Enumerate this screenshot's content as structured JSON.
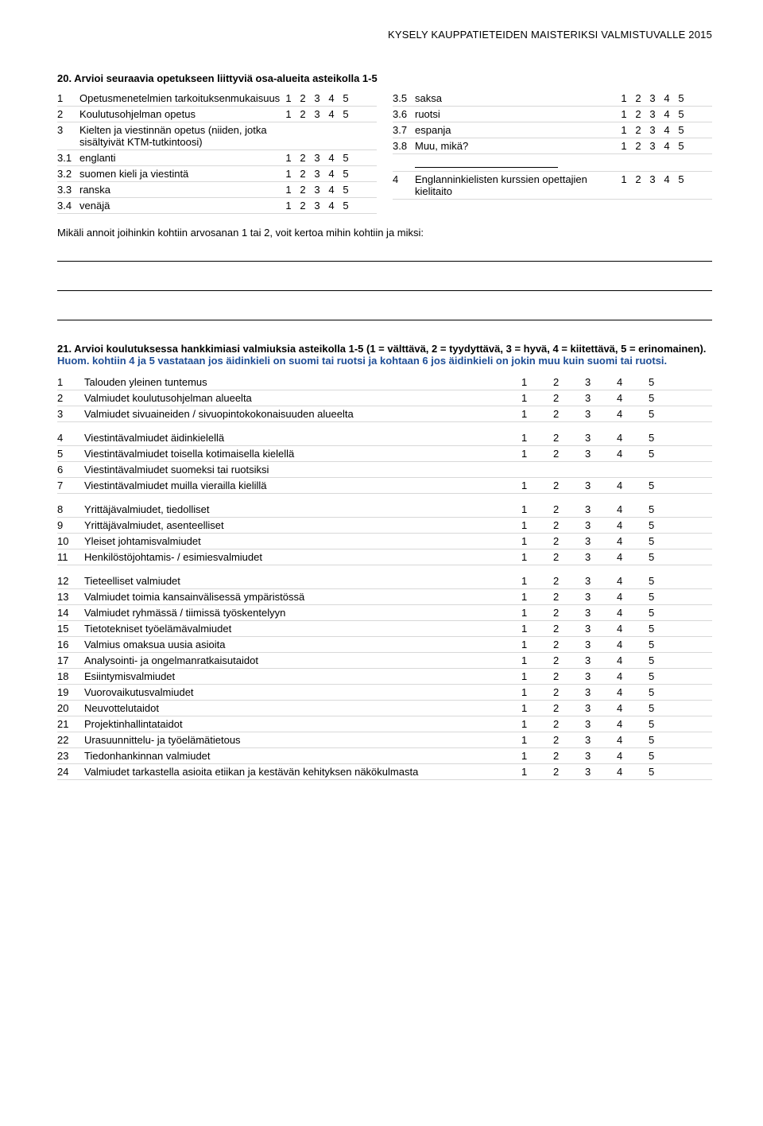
{
  "header": "KYSELY KAUPPATIETEIDEN MAISTERIKSI VALMISTUVALLE 2015",
  "q20": {
    "num": "20.",
    "title": "Arvioi seuraavia opetukseen liittyviä osa-alueita asteikolla 1-5",
    "left": [
      {
        "idx": "1",
        "label": "Opetusmenetelmien tarkoituksenmukaisuus",
        "scale": "1  2  3  4  5"
      },
      {
        "idx": "2",
        "label": "Koulutusohjelman opetus",
        "scale": "1  2  3  4  5"
      },
      {
        "idx": "3",
        "label": "Kielten ja viestinnän opetus (niiden, jotka sisältyivät KTM-tutkintoosi)",
        "scale": ""
      },
      {
        "idx": "3.1",
        "label": "englanti",
        "scale": "1  2  3  4  5"
      },
      {
        "idx": "3.2",
        "label": "suomen kieli ja viestintä",
        "scale": "1  2  3  4  5"
      },
      {
        "idx": "3.3",
        "label": "ranska",
        "scale": "1  2  3  4  5"
      },
      {
        "idx": "3.4",
        "label": "venäjä",
        "scale": "1  2  3  4  5"
      }
    ],
    "right": [
      {
        "idx": "3.5",
        "label": "saksa",
        "scale": "1  2  3  4  5"
      },
      {
        "idx": "3.6",
        "label": "ruotsi",
        "scale": "1  2  3  4  5"
      },
      {
        "idx": "3.7",
        "label": "espanja",
        "scale": "1  2  3  4  5"
      },
      {
        "idx": "3.8",
        "label": "Muu, mikä?",
        "scale": "1  2  3  4  5",
        "blank": true
      },
      {
        "idx": "4",
        "label": "Englanninkielisten kurssien opettajien kielitaito",
        "scale": "1  2  3  4  5"
      }
    ],
    "note": "Mikäli annoit joihinkin kohtiin arvosanan 1 tai 2, voit kertoa mihin kohtiin ja miksi:"
  },
  "q21": {
    "num": "21.",
    "title_black": "Arvioi koulutuksessa hankkimiasi valmiuksia asteikolla 1-5 (1 = välttävä, 2 = tyydyttävä, 3 = hyvä, 4 = kiitettävä, 5 = erinomainen). ",
    "title_blue": "Huom. kohtiin 4 ja 5 vastataan jos äidinkieli on suomi tai ruotsi ja kohtaan 6 jos äidinkieli on jokin muu kuin suomi tai ruotsi.",
    "groups": [
      [
        {
          "idx": "1",
          "label": "Talouden yleinen tuntemus",
          "scale": "1 2 3 4 5"
        },
        {
          "idx": "2",
          "label": "Valmiudet koulutusohjelman alueelta",
          "scale": "1 2 3 4 5"
        },
        {
          "idx": "3",
          "label": "Valmiudet sivuaineiden / sivuopintokokonaisuuden alueelta",
          "scale": "1 2 3 4 5"
        }
      ],
      [
        {
          "idx": "4",
          "label": "Viestintävalmiudet äidinkielellä",
          "scale": "1 2 3 4 5"
        },
        {
          "idx": "5",
          "label": "Viestintävalmiudet toisella kotimaisella kielellä",
          "scale": "1 2 3 4 5"
        },
        {
          "idx": "6",
          "label": "Viestintävalmiudet suomeksi tai ruotsiksi",
          "scale": ""
        },
        {
          "idx": "7",
          "label": "Viestintävalmiudet muilla vierailla kielillä",
          "scale": "1 2 3 4 5"
        }
      ],
      [
        {
          "idx": "8",
          "label": "Yrittäjävalmiudet, tiedolliset",
          "scale": "1 2 3 4 5"
        },
        {
          "idx": "9",
          "label": "Yrittäjävalmiudet, asenteelliset",
          "scale": "1 2 3 4 5"
        },
        {
          "idx": "10",
          "label": "Yleiset johtamisvalmiudet",
          "scale": "1 2 3 4 5"
        },
        {
          "idx": "11",
          "label": "Henkilöstöjohtamis- / esimiesvalmiudet",
          "scale": "1 2 3 4 5"
        }
      ],
      [
        {
          "idx": "12",
          "label": "Tieteelliset valmiudet",
          "scale": "1 2 3 4 5"
        },
        {
          "idx": "13",
          "label": "Valmiudet toimia kansainvälisessä ympäristössä",
          "scale": "1 2 3 4 5"
        },
        {
          "idx": "14",
          "label": "Valmiudet ryhmässä / tiimissä työskentelyyn",
          "scale": "1 2 3 4 5"
        },
        {
          "idx": "15",
          "label": "Tietotekniset työelämävalmiudet",
          "scale": "1 2 3 4 5"
        },
        {
          "idx": "16",
          "label": "Valmius omaksua uusia asioita",
          "scale": "1 2 3 4 5"
        },
        {
          "idx": "17",
          "label": "Analysointi- ja ongelmanratkaisutaidot",
          "scale": "1 2 3 4 5"
        },
        {
          "idx": "18",
          "label": "Esiintymisvalmiudet",
          "scale": "1 2 3 4 5"
        },
        {
          "idx": "19",
          "label": "Vuorovaikutusvalmiudet",
          "scale": "1 2 3 4 5"
        },
        {
          "idx": "20",
          "label": "Neuvottelutaidot",
          "scale": "1 2 3 4 5"
        },
        {
          "idx": "21",
          "label": "Projektinhallintataidot",
          "scale": "1 2 3 4 5"
        },
        {
          "idx": "22",
          "label": "Urasuunnittelu- ja työelämätietous",
          "scale": "1 2 3 4 5"
        },
        {
          "idx": "23",
          "label": "Tiedonhankinnan valmiudet",
          "scale": "1 2 3 4 5"
        },
        {
          "idx": "24",
          "label": "Valmiudet tarkastella asioita etiikan ja kestävän kehityksen näkökulmasta",
          "scale": "1 2 3 4 5"
        }
      ]
    ]
  },
  "scale5": [
    "1",
    "2",
    "3",
    "4",
    "5"
  ]
}
